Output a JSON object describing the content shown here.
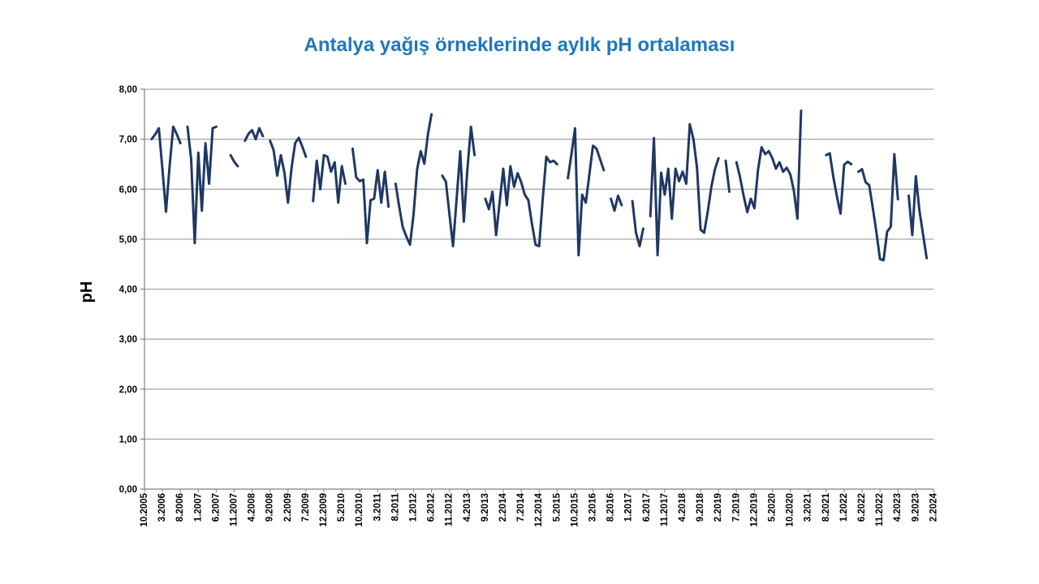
{
  "chart": {
    "title": "Antalya yağış örneklerinde aylık pH ortalaması",
    "title_color": "#2077BD",
    "y_axis_title": "pH",
    "line_color": "#1F3864",
    "grid_color": "#A6A6A6",
    "axis_color": "#808080",
    "background": "#FFFFFF"
  },
  "chart_data": {
    "type": "line",
    "title": "Antalya yağış örneklerinde aylık pH ortalaması",
    "ylabel": "pH",
    "xlabel": "",
    "ylim": [
      0,
      8
    ],
    "y_tick_labels": [
      "0,00",
      "1,00",
      "2,00",
      "3,00",
      "4,00",
      "5,00",
      "6,00",
      "7,00",
      "8,00"
    ],
    "grid": "horizontal",
    "legend": "none",
    "x_tick_interval_months": 5,
    "x_tick_labels": [
      "10.2005",
      "3.2006",
      "8.2006",
      "1.2007",
      "6.2007",
      "11.2007",
      "4.2008",
      "9.2008",
      "2.2009",
      "7.2009",
      "12.2009",
      "5.2010",
      "10.2010",
      "3.2011",
      "8.2011",
      "1.2012",
      "6.2012",
      "11.2012",
      "4.2013",
      "9.2013",
      "2.2014",
      "7.2014",
      "12.2014",
      "5.2015",
      "10.2015",
      "3.2016",
      "8.2016",
      "1.2017",
      "6.2017",
      "11.2017",
      "4.2018",
      "9.2018",
      "2.2019",
      "7.2019",
      "12.2019",
      "5.2020",
      "10.2020",
      "3.2021",
      "8.2021",
      "1.2022",
      "6.2022",
      "11.2022",
      "4.2023",
      "9.2023",
      "2.2024"
    ],
    "series_name": "Aylık pH ortalaması",
    "start_month": "10.2005",
    "end_month": "2.2024",
    "values": [
      null,
      null,
      7.0,
      7.1,
      7.22,
      6.4,
      5.55,
      6.45,
      7.25,
      7.1,
      6.92,
      null,
      7.25,
      6.6,
      4.92,
      6.73,
      5.57,
      6.92,
      6.11,
      7.22,
      7.25,
      null,
      null,
      null,
      6.68,
      6.55,
      6.46,
      null,
      6.97,
      7.11,
      7.18,
      7.0,
      7.22,
      7.06,
      null,
      6.97,
      6.78,
      6.27,
      6.68,
      6.33,
      5.73,
      6.43,
      6.92,
      7.03,
      6.85,
      6.65,
      null,
      5.76,
      6.57,
      6.0,
      6.68,
      6.65,
      6.35,
      6.54,
      5.73,
      6.46,
      6.11,
      null,
      6.81,
      6.24,
      6.16,
      6.19,
      4.92,
      5.78,
      5.81,
      6.38,
      5.73,
      6.35,
      5.65,
      null,
      6.11,
      5.65,
      5.24,
      5.05,
      4.89,
      5.5,
      6.4,
      6.76,
      6.51,
      7.1,
      7.5,
      null,
      null,
      6.27,
      6.15,
      5.5,
      4.86,
      5.8,
      6.76,
      5.35,
      6.4,
      7.25,
      6.68,
      null,
      null,
      5.81,
      5.6,
      5.95,
      5.08,
      5.75,
      6.41,
      5.68,
      6.46,
      6.05,
      6.32,
      6.14,
      5.89,
      5.78,
      5.3,
      4.89,
      4.86,
      5.8,
      6.65,
      6.54,
      6.57,
      6.5,
      null,
      null,
      6.22,
      6.7,
      7.22,
      4.68,
      5.89,
      5.73,
      6.3,
      6.87,
      6.81,
      6.6,
      6.38,
      null,
      5.81,
      5.57,
      5.87,
      5.68,
      null,
      null,
      5.76,
      5.13,
      4.86,
      5.21,
      null,
      5.46,
      7.02,
      4.68,
      6.33,
      5.89,
      6.41,
      5.41,
      6.41,
      6.16,
      6.35,
      6.11,
      7.3,
      7.0,
      6.43,
      5.19,
      5.13,
      5.55,
      6.05,
      6.4,
      6.62,
      null,
      6.57,
      5.95,
      null,
      6.54,
      6.24,
      5.87,
      5.54,
      5.81,
      5.62,
      6.38,
      6.84,
      6.7,
      6.76,
      6.62,
      6.41,
      6.54,
      6.35,
      6.43,
      6.3,
      5.97,
      5.41,
      7.57,
      null,
      null,
      null,
      null,
      null,
      null,
      6.68,
      6.72,
      6.25,
      5.85,
      5.51,
      6.49,
      6.55,
      6.5,
      null,
      6.35,
      6.4,
      6.14,
      6.08,
      5.62,
      5.14,
      4.6,
      4.58,
      5.15,
      5.25,
      6.7,
      5.8,
      null,
      null,
      5.87,
      5.08,
      6.26,
      5.57,
      5.1,
      4.62,
      null,
      null
    ]
  }
}
